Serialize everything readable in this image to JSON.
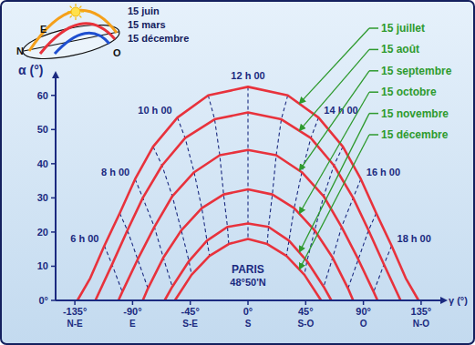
{
  "chart_data": {
    "type": "line",
    "xlabel": "γ (°)",
    "ylabel": "α (°)",
    "xlim": [
      -150,
      150
    ],
    "ylim": [
      0,
      65
    ],
    "xticks": [
      {
        "value": -135,
        "label": "-135°"
      },
      {
        "value": -90,
        "label": "-90°"
      },
      {
        "value": -45,
        "label": "-45°"
      },
      {
        "value": 0,
        "label": "0°"
      },
      {
        "value": 45,
        "label": "45°"
      },
      {
        "value": 90,
        "label": "90°"
      },
      {
        "value": 135,
        "label": "135°"
      }
    ],
    "xtick_sublabels": [
      "N-E",
      "E",
      "S-E",
      "S",
      "S-O",
      "O",
      "N-O"
    ],
    "yticks": [
      {
        "value": 0,
        "label": "0°"
      },
      10,
      20,
      30,
      40,
      50,
      60
    ],
    "grid": false,
    "legend": "top-right",
    "series": [
      {
        "name": "15 juillet",
        "color": "#e8323c",
        "line_style": "solid",
        "x": [
          -133,
          -123,
          -112,
          -100,
          -88,
          -74,
          -55,
          -31,
          0,
          31,
          55,
          74,
          88,
          100,
          112,
          123,
          133
        ],
        "values": [
          0,
          6.5,
          16,
          25.5,
          35.5,
          45,
          53.5,
          60,
          62.5,
          60,
          53.5,
          45,
          35.5,
          25.5,
          16,
          6.5,
          0
        ]
      },
      {
        "name": "15 août",
        "color": "#e8323c",
        "line_style": "solid",
        "x": [
          -119,
          -106,
          -94,
          -82,
          -67,
          -49,
          -26,
          0,
          26,
          49,
          67,
          82,
          94,
          106,
          119
        ],
        "values": [
          0,
          10.5,
          20.5,
          30,
          39.5,
          47.5,
          53,
          55,
          53,
          47.5,
          39.5,
          30,
          20.5,
          10.5,
          0
        ]
      },
      {
        "name": "15 septembre",
        "color": "#e8323c",
        "line_style": "solid",
        "x": [
          -101,
          -98,
          -86,
          -73,
          -59,
          -42,
          -22,
          0,
          22,
          42,
          59,
          73,
          86,
          98,
          101
        ],
        "values": [
          0,
          2.5,
          12,
          21.5,
          30.5,
          37.5,
          42.5,
          44,
          42.5,
          37.5,
          30.5,
          21.5,
          12,
          2.5,
          0
        ]
      },
      {
        "name": "15 octobre",
        "color": "#e8323c",
        "line_style": "solid",
        "x": [
          -82,
          -78,
          -66,
          -52,
          -36,
          -19,
          0,
          19,
          36,
          52,
          66,
          78,
          82
        ],
        "values": [
          0,
          3.5,
          12.5,
          20.5,
          27,
          31,
          32.5,
          31,
          27,
          20.5,
          12.5,
          3.5,
          0
        ]
      },
      {
        "name": "15 novembre",
        "color": "#e8323c",
        "line_style": "solid",
        "x": [
          -65,
          -59,
          -46,
          -32,
          -16,
          0,
          16,
          32,
          46,
          59,
          65
        ],
        "values": [
          0,
          4,
          11.5,
          17.5,
          21.5,
          22.5,
          21.5,
          17.5,
          11.5,
          4,
          0
        ]
      },
      {
        "name": "15 décembre",
        "color": "#e8323c",
        "line_style": "solid",
        "x": [
          -57,
          -44,
          -30,
          -15,
          0,
          15,
          30,
          44,
          57
        ],
        "values": [
          0,
          7.5,
          13,
          16.5,
          18,
          16.5,
          13,
          7.5,
          0
        ]
      }
    ],
    "hour_lines": [
      {
        "label": "6 h 00",
        "line_style": "dashed",
        "x": [
          -112,
          -106,
          -98
        ],
        "values": [
          16,
          10.5,
          2.5
        ]
      },
      {
        "line_style": "dashed",
        "x": [
          -100,
          -94,
          -86,
          -78
        ],
        "values": [
          25.5,
          20.5,
          12,
          3.5
        ]
      },
      {
        "label": "8 h 00",
        "line_style": "dashed",
        "x": [
          -88,
          -82,
          -73,
          -66,
          -59
        ],
        "values": [
          35.5,
          30,
          21.5,
          12.5,
          4
        ]
      },
      {
        "line_style": "dashed",
        "x": [
          -74,
          -67,
          -59,
          -52,
          -46,
          -44
        ],
        "values": [
          45,
          39.5,
          30.5,
          20.5,
          11.5,
          7.5
        ]
      },
      {
        "label": "10 h 00",
        "line_style": "dashed",
        "x": [
          -55,
          -49,
          -42,
          -36,
          -32,
          -30
        ],
        "values": [
          53.5,
          47.5,
          37.5,
          27,
          17.5,
          13
        ]
      },
      {
        "line_style": "dashed",
        "x": [
          -31,
          -26,
          -22,
          -19,
          -16,
          -15
        ],
        "values": [
          60,
          53,
          42.5,
          31,
          21.5,
          16.5
        ]
      },
      {
        "label": "12 h 00",
        "line_style": "dashed",
        "x": [
          0,
          0,
          0,
          0,
          0,
          0
        ],
        "values": [
          62.5,
          55,
          44,
          32.5,
          22.5,
          18
        ]
      },
      {
        "line_style": "dashed",
        "x": [
          31,
          26,
          22,
          19,
          16,
          15
        ],
        "values": [
          60,
          53,
          42.5,
          31,
          21.5,
          16.5
        ]
      },
      {
        "label": "14 h 00",
        "line_style": "dashed",
        "x": [
          55,
          49,
          42,
          36,
          32,
          30
        ],
        "values": [
          53.5,
          47.5,
          37.5,
          27,
          17.5,
          13
        ]
      },
      {
        "line_style": "dashed",
        "x": [
          74,
          67,
          59,
          52,
          46,
          44
        ],
        "values": [
          45,
          39.5,
          30.5,
          20.5,
          11.5,
          7.5
        ]
      },
      {
        "label": "16 h 00",
        "line_style": "dashed",
        "x": [
          88,
          82,
          73,
          66,
          59
        ],
        "values": [
          35.5,
          30,
          21.5,
          12.5,
          4
        ]
      },
      {
        "line_style": "dashed",
        "x": [
          100,
          94,
          86,
          78
        ],
        "values": [
          25.5,
          20.5,
          12,
          3.5
        ]
      },
      {
        "label": "18 h 00",
        "line_style": "dashed",
        "x": [
          112,
          106,
          98
        ],
        "values": [
          16,
          10.5,
          2.5
        ]
      }
    ],
    "location": {
      "name": "PARIS",
      "latitude": "48°50'N"
    },
    "inset": {
      "dates": [
        "15 juin",
        "15 mars",
        "15 décembre"
      ],
      "directions": [
        "N",
        "E",
        "O"
      ]
    }
  }
}
